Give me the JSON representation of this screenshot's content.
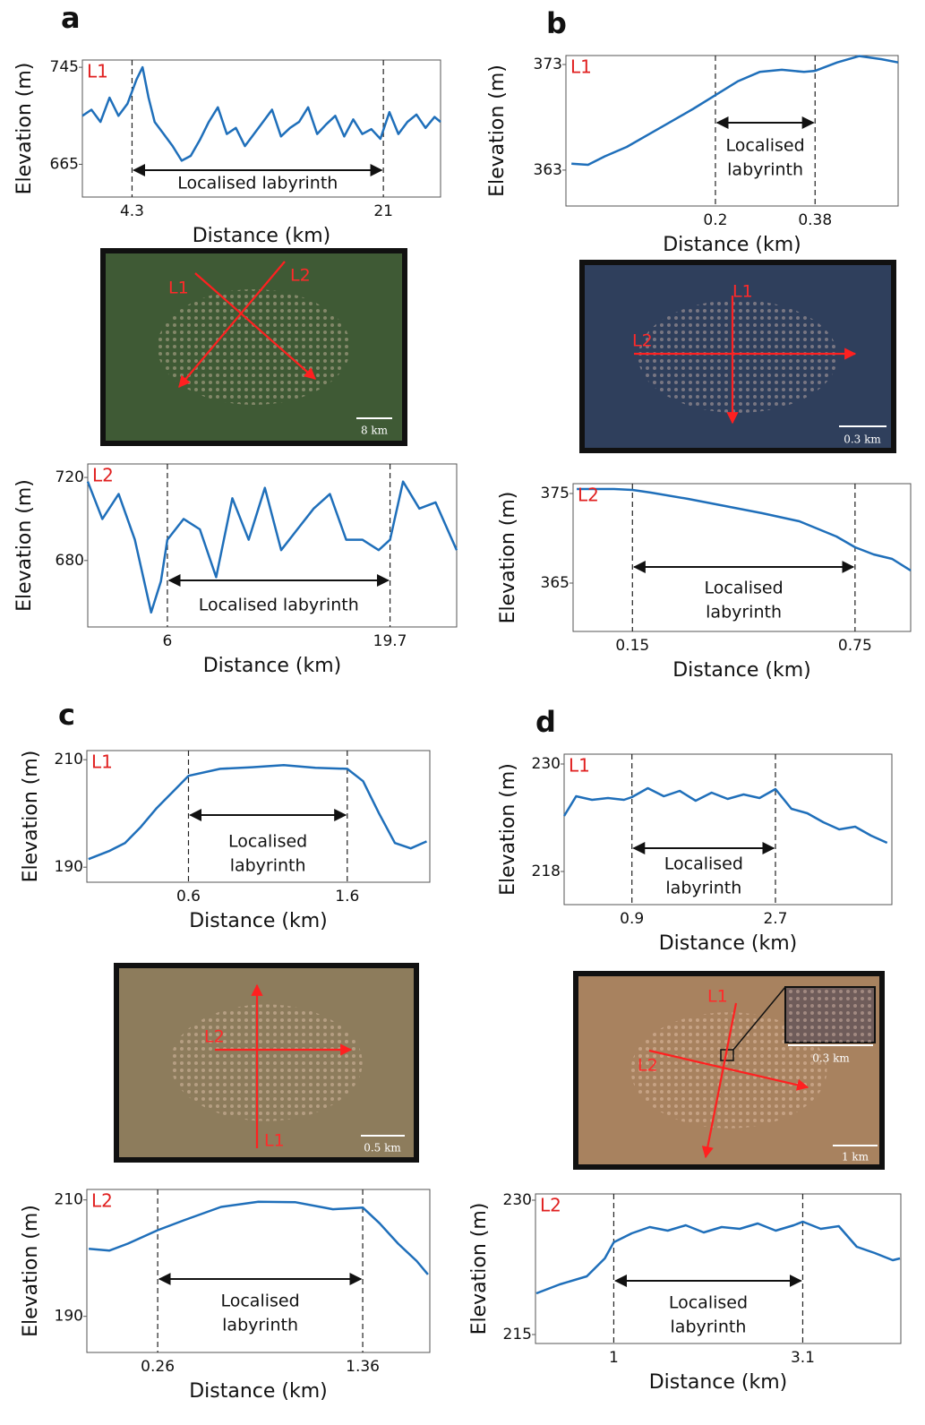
{
  "panels": [
    {
      "letter": "a",
      "image": {
        "labels": [
          "L1",
          "L2"
        ],
        "scale": [
          "8 km"
        ]
      }
    },
    {
      "letter": "b",
      "image": {
        "labels": [
          "L1",
          "L2"
        ],
        "scale": [
          "0.3 km"
        ]
      }
    },
    {
      "letter": "c",
      "image": {
        "labels": [
          "L2",
          "L1"
        ],
        "scale": [
          "0.5 km"
        ]
      }
    },
    {
      "letter": "d",
      "image": {
        "labels": [
          "L1",
          "L2"
        ],
        "scale": [
          "0.3 km",
          "1 km"
        ]
      }
    }
  ],
  "chart_data": [
    {
      "type": "line",
      "corner_label": "L1",
      "ylabel": "Elevation (m)",
      "xlabel": "Distance (km)",
      "annotation": [
        "Localised labyrinth"
      ],
      "color": "#1f6fba",
      "xlim": [
        1.0,
        24.8
      ],
      "ylim": [
        638,
        751
      ],
      "xticks": [
        4.3,
        21
      ],
      "yticks": [
        745,
        665
      ],
      "x": [
        1,
        1.6,
        2.2,
        2.8,
        3.4,
        4,
        4.6,
        5,
        5.4,
        5.8,
        6.4,
        7,
        7.6,
        8.2,
        8.8,
        9.4,
        10,
        10.6,
        11.2,
        11.8,
        12.4,
        13,
        13.6,
        14.2,
        14.8,
        15.4,
        16,
        16.6,
        17.2,
        17.8,
        18.4,
        19,
        19.6,
        20.2,
        20.8,
        21.4,
        22,
        22.6,
        23.2,
        23.8,
        24.4,
        24.8
      ],
      "values": [
        705,
        710,
        700,
        720,
        705,
        715,
        735,
        745,
        720,
        700,
        690,
        680,
        668,
        672,
        685,
        700,
        712,
        690,
        695,
        680,
        690,
        700,
        710,
        688,
        695,
        700,
        712,
        690,
        698,
        705,
        688,
        702,
        690,
        694,
        686,
        708,
        690,
        700,
        706,
        695,
        704,
        700
      ]
    },
    {
      "type": "line",
      "corner_label": "L2",
      "ylabel": "Elevation (m)",
      "xlabel": "Distance (km)",
      "annotation": [
        "Localised labyrinth"
      ],
      "color": "#1f6fba",
      "xlim": [
        1.1,
        23.8
      ],
      "ylim": [
        648,
        726.5
      ],
      "xticks": [
        6,
        19.7
      ],
      "yticks": [
        720,
        680
      ],
      "x": [
        1.1,
        2,
        3,
        4,
        5,
        5.6,
        6,
        7,
        8,
        9,
        10,
        11,
        12,
        13,
        14,
        15,
        16,
        17,
        18,
        19,
        19.7,
        20.5,
        21.5,
        22.5,
        23.8
      ],
      "values": [
        718,
        700,
        712,
        690,
        655,
        670,
        690,
        700,
        695,
        672,
        710,
        690,
        715,
        685,
        695,
        705,
        712,
        690,
        690,
        685,
        690,
        718,
        705,
        708,
        685
      ]
    },
    {
      "type": "line",
      "corner_label": "L1",
      "ylabel": "Elevation (m)",
      "xlabel": "Distance (km)",
      "annotation": [
        "Localised",
        "labyrinth"
      ],
      "color": "#1f6fba",
      "xlim": [
        -0.07,
        0.53
      ],
      "ylim": [
        359.6,
        373.85
      ],
      "xticks": [
        0.2,
        0.38
      ],
      "yticks": [
        373,
        363
      ],
      "x": [
        -0.06,
        -0.03,
        0,
        0.04,
        0.08,
        0.12,
        0.16,
        0.2,
        0.24,
        0.28,
        0.32,
        0.36,
        0.38,
        0.42,
        0.46,
        0.5,
        0.53
      ],
      "values": [
        363.6,
        363.5,
        364.3,
        365.2,
        366.4,
        367.6,
        368.8,
        370.1,
        371.4,
        372.3,
        372.5,
        372.3,
        372.4,
        373.2,
        373.8,
        373.5,
        373.2
      ]
    },
    {
      "type": "line",
      "corner_label": "L2",
      "ylabel": "Elevation (m)",
      "xlabel": "Distance (km)",
      "annotation": [
        "Localised",
        "labyrinth"
      ],
      "color": "#1f6fba",
      "xlim": [
        -0.01,
        0.9
      ],
      "ylim": [
        359.6,
        376.1
      ],
      "xticks": [
        0.15,
        0.75
      ],
      "yticks": [
        375,
        365
      ],
      "x": [
        0,
        0.05,
        0.1,
        0.15,
        0.2,
        0.3,
        0.4,
        0.5,
        0.6,
        0.7,
        0.75,
        0.8,
        0.85,
        0.9
      ],
      "values": [
        375.5,
        375.5,
        375.5,
        375.4,
        375.1,
        374.4,
        373.6,
        372.8,
        371.9,
        370.2,
        369.0,
        368.2,
        367.7,
        366.4
      ]
    },
    {
      "type": "line",
      "corner_label": "L1",
      "ylabel": "Elevation (m)",
      "xlabel": "Distance (km)",
      "annotation": [
        "Localised",
        "labyrinth"
      ],
      "color": "#1f6fba",
      "xlim": [
        -0.04,
        2.12
      ],
      "ylim": [
        187.2,
        211.7
      ],
      "xticks": [
        0.6,
        1.6
      ],
      "yticks": [
        210,
        190
      ],
      "x": [
        -0.03,
        0.1,
        0.2,
        0.3,
        0.4,
        0.5,
        0.6,
        0.8,
        1.0,
        1.2,
        1.4,
        1.6,
        1.7,
        1.8,
        1.9,
        2.0,
        2.1
      ],
      "values": [
        191.5,
        193,
        194.5,
        197.5,
        201,
        204,
        207,
        208.3,
        208.6,
        209.0,
        208.5,
        208.3,
        206,
        200,
        194.5,
        193.5,
        194.8
      ]
    },
    {
      "type": "line",
      "corner_label": "L2",
      "ylabel": "Elevation (m)",
      "xlabel": "Distance (km)",
      "annotation": [
        "Localised",
        "labyrinth"
      ],
      "color": "#1f6fba",
      "xlim": [
        -0.12,
        1.72
      ],
      "ylim": [
        183.8,
        211.8
      ],
      "xticks": [
        0.26,
        1.36
      ],
      "yticks": [
        210,
        190
      ],
      "x": [
        -0.11,
        0,
        0.1,
        0.26,
        0.4,
        0.6,
        0.8,
        1.0,
        1.2,
        1.36,
        1.45,
        1.55,
        1.65,
        1.71
      ],
      "values": [
        201.6,
        201.3,
        202.5,
        204.8,
        206.5,
        208.8,
        209.7,
        209.6,
        208.4,
        208.7,
        206,
        202.5,
        199.5,
        197.2
      ]
    },
    {
      "type": "line",
      "corner_label": "L1",
      "ylabel": "Elevation (m)",
      "xlabel": "Distance (km)",
      "annotation": [
        "Localised",
        "labyrinth"
      ],
      "color": "#1f6fba",
      "xlim": [
        0.05,
        4.16
      ],
      "ylim": [
        214.3,
        231.1
      ],
      "xticks": [
        0.9,
        2.7
      ],
      "yticks": [
        230,
        218
      ],
      "x": [
        0.05,
        0.2,
        0.4,
        0.6,
        0.8,
        0.9,
        1.1,
        1.3,
        1.5,
        1.7,
        1.9,
        2.1,
        2.3,
        2.5,
        2.7,
        2.9,
        3.1,
        3.3,
        3.5,
        3.7,
        3.9,
        4.1
      ],
      "values": [
        224.2,
        226.4,
        226.0,
        226.2,
        226.0,
        226.3,
        227.3,
        226.4,
        227.0,
        225.9,
        226.8,
        226.1,
        226.6,
        226.2,
        227.2,
        225.0,
        224.5,
        223.5,
        222.7,
        223.0,
        222.0,
        221.2
      ]
    },
    {
      "type": "line",
      "corner_label": "L2",
      "ylabel": "Elevation (m)",
      "xlabel": "Distance (km)",
      "annotation": [
        "Localised",
        "labyrinth"
      ],
      "color": "#1f6fba",
      "xlim": [
        0.13,
        4.19
      ],
      "ylim": [
        214,
        230.7
      ],
      "xticks": [
        1,
        3.1
      ],
      "yticks": [
        230,
        215
      ],
      "x": [
        0.14,
        0.4,
        0.7,
        0.9,
        1.0,
        1.2,
        1.4,
        1.6,
        1.8,
        2.0,
        2.2,
        2.4,
        2.6,
        2.8,
        3.0,
        3.1,
        3.3,
        3.5,
        3.7,
        3.9,
        4.1,
        4.18
      ],
      "values": [
        219.6,
        220.6,
        221.5,
        223.5,
        225.3,
        226.3,
        227.0,
        226.6,
        227.2,
        226.4,
        227.0,
        226.8,
        227.4,
        226.6,
        227.2,
        227.6,
        226.8,
        227.1,
        224.8,
        224.1,
        223.3,
        223.5
      ]
    }
  ]
}
